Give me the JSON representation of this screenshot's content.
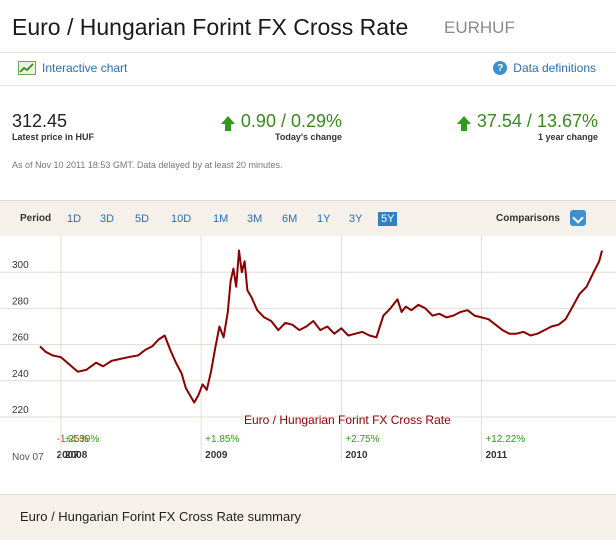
{
  "header": {
    "title": "Euro / Hungarian Forint FX Cross Rate",
    "ticker": "EURHUF"
  },
  "toolbar": {
    "interactive_chart": "Interactive chart",
    "data_definitions": "Data definitions"
  },
  "quote": {
    "price": "312.45",
    "price_label": "Latest price in HUF",
    "today_change": "0.90 / 0.29%",
    "today_label": "Today's change",
    "year_change": "37.54 / 13.67%",
    "year_label": "1 year change"
  },
  "as_of": "As of Nov 10 2011 18:53 GMT. Data delayed by at least 20 minutes.",
  "periods": {
    "label": "Period",
    "items": [
      "1D",
      "3D",
      "5D",
      "10D",
      "1M",
      "3M",
      "6M",
      "1Y",
      "3Y",
      "5Y"
    ],
    "active": "5Y"
  },
  "comparisons_label": "Comparisons",
  "colors": {
    "line": "#8b0000",
    "up": "#2f9a1a",
    "down": "#c0392b",
    "link": "#2a6eb0",
    "active": "#2e82c3"
  },
  "chart_data": {
    "type": "line",
    "series_label": "Euro / Hungarian Forint FX Cross Rate",
    "ylim": [
      215,
      320
    ],
    "yticks": [
      220,
      240,
      260,
      280,
      300
    ],
    "start_label": "Nov 07",
    "years": [
      {
        "year": "2007",
        "change": "-1.25%",
        "dir": "down"
      },
      {
        "year": "2008",
        "change": "+4.39%",
        "dir": "up"
      },
      {
        "year": "2009",
        "change": "+1.85%",
        "dir": "up"
      },
      {
        "year": "2010",
        "change": "+2.75%",
        "dir": "up"
      },
      {
        "year": "2011",
        "change": "+12.22%",
        "dir": "up"
      }
    ],
    "x_start": 2007.85,
    "x_end": 2011.86,
    "points": [
      [
        2007.85,
        259
      ],
      [
        2007.89,
        256
      ],
      [
        2007.94,
        254
      ],
      [
        2008.0,
        253
      ],
      [
        2008.06,
        249
      ],
      [
        2008.12,
        245
      ],
      [
        2008.18,
        246
      ],
      [
        2008.25,
        250
      ],
      [
        2008.3,
        248
      ],
      [
        2008.36,
        251
      ],
      [
        2008.42,
        252
      ],
      [
        2008.48,
        253
      ],
      [
        2008.55,
        254
      ],
      [
        2008.6,
        257
      ],
      [
        2008.65,
        259
      ],
      [
        2008.7,
        263
      ],
      [
        2008.74,
        265
      ],
      [
        2008.78,
        257
      ],
      [
        2008.82,
        250
      ],
      [
        2008.86,
        244
      ],
      [
        2008.89,
        236
      ],
      [
        2008.92,
        232
      ],
      [
        2008.95,
        228
      ],
      [
        2008.98,
        232
      ],
      [
        2009.01,
        238
      ],
      [
        2009.04,
        235
      ],
      [
        2009.07,
        245
      ],
      [
        2009.1,
        258
      ],
      [
        2009.13,
        270
      ],
      [
        2009.16,
        264
      ],
      [
        2009.19,
        278
      ],
      [
        2009.21,
        295
      ],
      [
        2009.23,
        302
      ],
      [
        2009.25,
        292
      ],
      [
        2009.27,
        312
      ],
      [
        2009.29,
        300
      ],
      [
        2009.31,
        306
      ],
      [
        2009.33,
        290
      ],
      [
        2009.36,
        286
      ],
      [
        2009.4,
        279
      ],
      [
        2009.45,
        275
      ],
      [
        2009.5,
        273
      ],
      [
        2009.55,
        268
      ],
      [
        2009.6,
        272
      ],
      [
        2009.65,
        271
      ],
      [
        2009.7,
        268
      ],
      [
        2009.75,
        270
      ],
      [
        2009.8,
        273
      ],
      [
        2009.85,
        268
      ],
      [
        2009.9,
        270
      ],
      [
        2009.95,
        266
      ],
      [
        2010.0,
        269
      ],
      [
        2010.05,
        265
      ],
      [
        2010.1,
        266
      ],
      [
        2010.15,
        267
      ],
      [
        2010.2,
        265
      ],
      [
        2010.25,
        264
      ],
      [
        2010.3,
        276
      ],
      [
        2010.35,
        280
      ],
      [
        2010.4,
        285
      ],
      [
        2010.43,
        278
      ],
      [
        2010.46,
        281
      ],
      [
        2010.5,
        279
      ],
      [
        2010.55,
        282
      ],
      [
        2010.6,
        280
      ],
      [
        2010.65,
        276
      ],
      [
        2010.7,
        277
      ],
      [
        2010.75,
        275
      ],
      [
        2010.8,
        276
      ],
      [
        2010.85,
        278
      ],
      [
        2010.9,
        279
      ],
      [
        2010.95,
        276
      ],
      [
        2011.0,
        275
      ],
      [
        2011.05,
        274
      ],
      [
        2011.1,
        271
      ],
      [
        2011.15,
        268
      ],
      [
        2011.2,
        266
      ],
      [
        2011.25,
        266
      ],
      [
        2011.3,
        267
      ],
      [
        2011.35,
        265
      ],
      [
        2011.4,
        266
      ],
      [
        2011.45,
        268
      ],
      [
        2011.5,
        270
      ],
      [
        2011.55,
        271
      ],
      [
        2011.6,
        274
      ],
      [
        2011.65,
        281
      ],
      [
        2011.7,
        288
      ],
      [
        2011.75,
        292
      ],
      [
        2011.8,
        300
      ],
      [
        2011.84,
        306
      ],
      [
        2011.86,
        312
      ]
    ]
  }
}
